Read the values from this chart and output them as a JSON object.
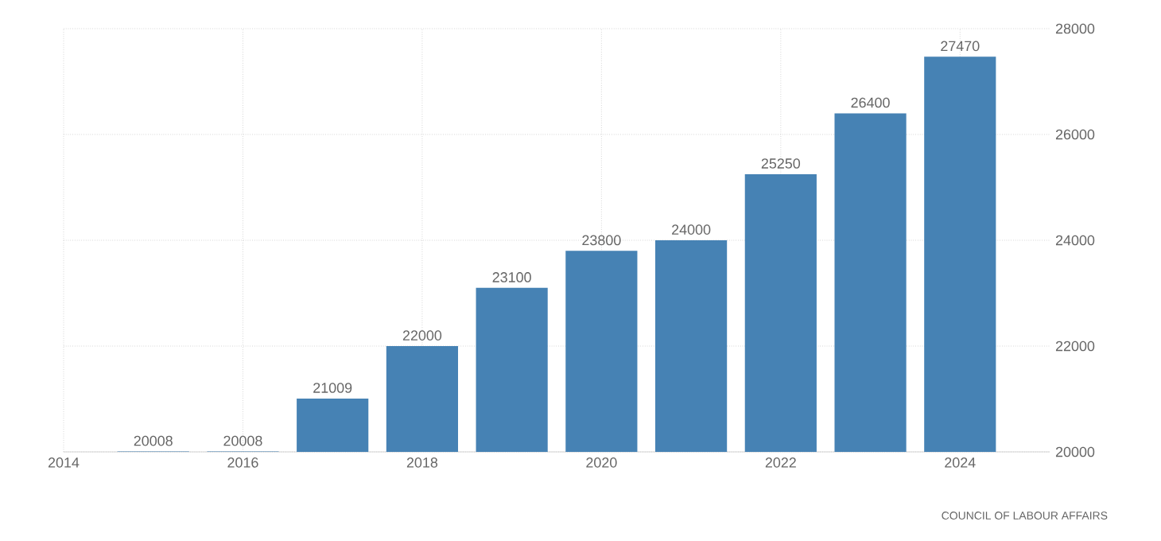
{
  "chart_data": {
    "type": "bar",
    "x": [
      2015,
      2016,
      2017,
      2018,
      2019,
      2020,
      2021,
      2022,
      2023,
      2024
    ],
    "values": [
      20008,
      20008,
      21009,
      22000,
      23100,
      23800,
      24000,
      25250,
      26400,
      27470
    ],
    "color": "#4682b4",
    "xlim": [
      2014,
      2025
    ],
    "xticks": [
      2014,
      2016,
      2018,
      2020,
      2022,
      2024
    ],
    "ylim": [
      20000,
      28000
    ],
    "yticks": [
      20000,
      22000,
      24000,
      26000,
      28000
    ],
    "grid": true,
    "data_labels": true,
    "annotations": [
      "COUNCIL OF LABOUR AFFAIRS"
    ]
  }
}
